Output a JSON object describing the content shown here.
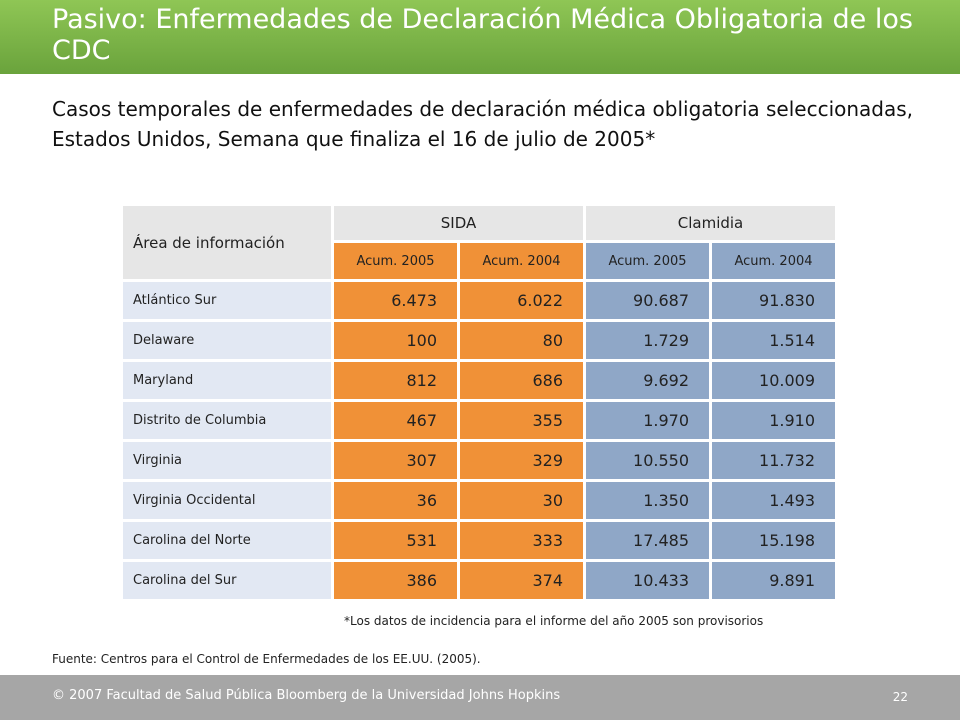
{
  "slide": {
    "title": "Pasivo: Enfermedades de Declaración Médica Obligatoria de los CDC",
    "subtitle": "Casos temporales de enfermedades de declaración médica obligatoria seleccionadas, Estados Unidos, Semana que finaliza el 16 de julio de 2005*"
  },
  "table": {
    "area_header": "Área de información",
    "groups": [
      "SIDA",
      "Clamidia"
    ],
    "subheaders": [
      "Acum. 2005",
      "Acum. 2004",
      "Acum. 2005",
      "Acum. 2004"
    ],
    "rows": [
      {
        "area": "Atlántico Sur",
        "sida_2005": "6.473",
        "sida_2004": "6.022",
        "clam_2005": "90.687",
        "clam_2004": "91.830"
      },
      {
        "area": "Delaware",
        "sida_2005": "100",
        "sida_2004": "80",
        "clam_2005": "1.729",
        "clam_2004": "1.514"
      },
      {
        "area": "Maryland",
        "sida_2005": "812",
        "sida_2004": "686",
        "clam_2005": "9.692",
        "clam_2004": "10.009"
      },
      {
        "area": "Distrito de Columbia",
        "sida_2005": "467",
        "sida_2004": "355",
        "clam_2005": "1.970",
        "clam_2004": "1.910"
      },
      {
        "area": "Virginia",
        "sida_2005": "307",
        "sida_2004": "329",
        "clam_2005": "10.550",
        "clam_2004": "11.732"
      },
      {
        "area": "Virginia Occidental",
        "sida_2005": "36",
        "sida_2004": "30",
        "clam_2005": "1.350",
        "clam_2004": "1.493"
      },
      {
        "area": "Carolina del Norte",
        "sida_2005": "531",
        "sida_2004": "333",
        "clam_2005": "17.485",
        "clam_2004": "15.198"
      },
      {
        "area": "Carolina del Sur",
        "sida_2005": "386",
        "sida_2004": "374",
        "clam_2005": "10.433",
        "clam_2004": "9.891"
      }
    ],
    "footnote": "*Los datos de incidencia para el informe del año 2005 son provisorios"
  },
  "source": "Fuente: Centros para el Control de Enfermedades de los EE.UU. (2005).",
  "footer": {
    "copyright": "© 2007 Facultad de Salud Pública Bloomberg de la Universidad Johns Hopkins",
    "page_number": "22"
  },
  "colors": {
    "title_bar": "#78b043",
    "sida": "#f09137",
    "clamidia": "#8fa7c7",
    "area_cells": "#e2e8f3",
    "header_cells": "#e6e6e6",
    "footer_bar": "#a6a6a6"
  }
}
